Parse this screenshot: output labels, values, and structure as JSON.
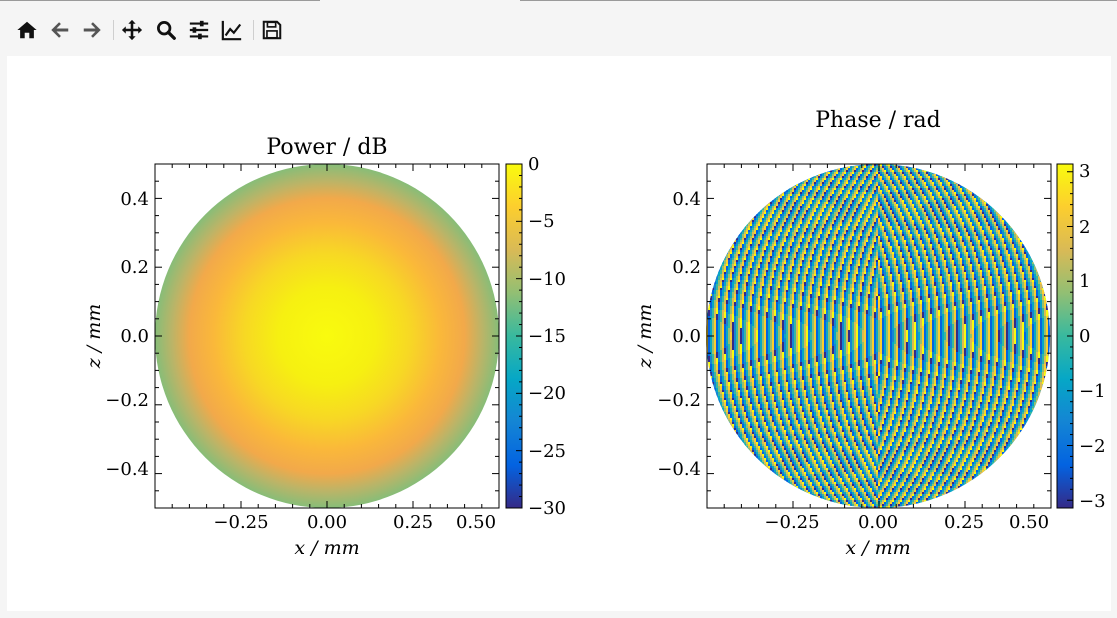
{
  "toolbar": {
    "buttons": [
      {
        "name": "home-icon",
        "icon": "home"
      },
      {
        "name": "back-icon",
        "icon": "arrow-left"
      },
      {
        "name": "forward-icon",
        "icon": "arrow-right"
      },
      {
        "name": "pan-icon",
        "icon": "move"
      },
      {
        "name": "zoom-icon",
        "icon": "magnifier"
      },
      {
        "name": "subplots-icon",
        "icon": "sliders"
      },
      {
        "name": "edit-axes-icon",
        "icon": "line-chart"
      },
      {
        "name": "save-icon",
        "icon": "floppy-disk"
      }
    ]
  },
  "chart_data": [
    {
      "type": "heatmap",
      "title": "Power / dB",
      "xlabel": "x / mm",
      "ylabel": "z / mm",
      "xlim": [
        -0.5,
        0.5
      ],
      "ylim": [
        -0.5,
        0.5
      ],
      "xticks": [
        -0.25,
        0.0,
        0.25,
        0.5
      ],
      "xtick_labels": [
        "−0.25",
        "0.00",
        "0.25",
        "0.50"
      ],
      "yticks": [
        -0.4,
        -0.2,
        0.0,
        0.2,
        0.4
      ],
      "ytick_labels": [
        "−0.4",
        "−0.2",
        "0.0",
        "0.2",
        "0.4"
      ],
      "aperture_radius": 0.5,
      "value_range": [
        -30,
        0
      ],
      "center_value": 0,
      "edge_value": -12,
      "colorbar": {
        "ticks": [
          0,
          -5,
          -10,
          -15,
          -20,
          -25,
          -30
        ],
        "tick_labels": [
          "0",
          "−5",
          "−10",
          "−15",
          "−20",
          "−25",
          "−30"
        ]
      }
    },
    {
      "type": "heatmap",
      "title": "Phase / rad",
      "xlabel": "x / mm",
      "ylabel": "z / mm",
      "xlim": [
        -0.5,
        0.5
      ],
      "ylim": [
        -0.5,
        0.5
      ],
      "xticks": [
        -0.25,
        0.0,
        0.25,
        0.5
      ],
      "xtick_labels": [
        "−0.25",
        "0.00",
        "0.25",
        "0.50"
      ],
      "yticks": [
        -0.4,
        -0.2,
        0.0,
        0.2,
        0.4
      ],
      "ytick_labels": [
        "−0.4",
        "−0.2",
        "0.0",
        "0.2",
        "0.4"
      ],
      "aperture_radius": 0.5,
      "value_range": [
        -3.1416,
        3.1416
      ],
      "colorbar": {
        "ticks": [
          3,
          2,
          1,
          0,
          -1,
          -2,
          -3
        ],
        "tick_labels": [
          "3",
          "2",
          "1",
          "0",
          "−1",
          "−2",
          "−3"
        ]
      }
    }
  ],
  "colormap": [
    "#352a87",
    "#0363e1",
    "#1485d4",
    "#06a7c6",
    "#38b99e",
    "#92bf73",
    "#d9ba56",
    "#fcce2e",
    "#f9fb0e"
  ]
}
